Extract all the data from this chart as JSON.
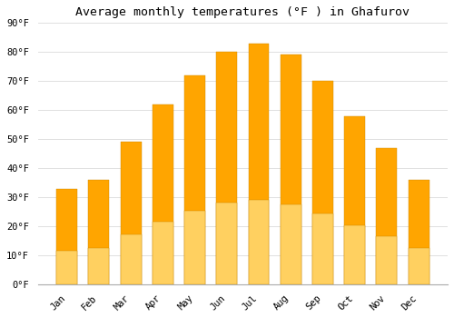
{
  "title": "Average monthly temperatures (°F ) in Ghafurov",
  "months": [
    "Jan",
    "Feb",
    "Mar",
    "Apr",
    "May",
    "Jun",
    "Jul",
    "Aug",
    "Sep",
    "Oct",
    "Nov",
    "Dec"
  ],
  "values": [
    33,
    36,
    49,
    62,
    72,
    80,
    83,
    79,
    70,
    58,
    47,
    36
  ],
  "bar_color_top": "#FFA500",
  "bar_color_bottom": "#FFD060",
  "bar_edge_color": "#CC8800",
  "background_color": "#ffffff",
  "grid_color": "#e0e0e0",
  "ylim": [
    0,
    90
  ],
  "yticks": [
    0,
    10,
    20,
    30,
    40,
    50,
    60,
    70,
    80,
    90
  ],
  "title_fontsize": 9.5,
  "tick_fontsize": 7.5,
  "font_family": "monospace"
}
